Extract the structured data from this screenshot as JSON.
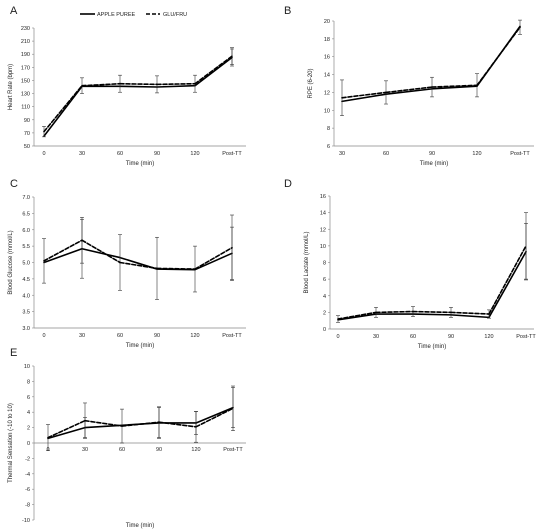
{
  "legend": {
    "apple_label": "APPLE PUREE",
    "glu_label": "GLU/FRU"
  },
  "chart_data": [
    {
      "type": "line",
      "panel": "A",
      "categories": [
        "0",
        "30",
        "60",
        "90",
        "120",
        "Post-TT"
      ],
      "xlabel": "Time (min)",
      "ylabel": "Heart Rate (bpm)",
      "ylim": [
        50,
        230
      ],
      "yticks": [
        50,
        70,
        90,
        110,
        130,
        150,
        170,
        190,
        210,
        230
      ],
      "series": [
        {
          "name": "APPLE PUREE",
          "values": [
            65,
            141,
            141,
            140,
            142,
            185
          ],
          "errors": [
            0,
            0,
            0,
            0,
            0,
            13
          ]
        },
        {
          "name": "GLU/FRU",
          "values": [
            72,
            142,
            145,
            144,
            145,
            187
          ],
          "errors": [
            8,
            12,
            13,
            13,
            13,
            13
          ]
        }
      ]
    },
    {
      "type": "line",
      "panel": "B",
      "categories": [
        "30",
        "60",
        "90",
        "120",
        "Post-TT"
      ],
      "xlabel": "Time (min)",
      "ylabel": "RPE (6-20)",
      "ylim": [
        6,
        20
      ],
      "yticks": [
        6,
        8,
        10,
        12,
        14,
        16,
        18,
        20
      ],
      "series": [
        {
          "name": "APPLE PUREE",
          "values": [
            11.0,
            11.8,
            12.4,
            12.7,
            19.4
          ],
          "errors": [
            0,
            0,
            0,
            0,
            0
          ]
        },
        {
          "name": "GLU/FRU",
          "values": [
            11.4,
            12.0,
            12.6,
            12.8,
            19.3
          ],
          "errors": [
            2.0,
            1.3,
            1.1,
            1.3,
            0.8
          ]
        }
      ]
    },
    {
      "type": "line",
      "panel": "C",
      "categories": [
        "0",
        "30",
        "60",
        "90",
        "120",
        "Post-TT"
      ],
      "xlabel": "Time (min)",
      "ylabel": "Blood Glucose (mmol/L)",
      "ylim": [
        3.0,
        7.0
      ],
      "yticks": [
        "3.0",
        "3.5",
        "4.0",
        "4.5",
        "5.0",
        "5.5",
        "6.0",
        "6.5",
        "7.0"
      ],
      "series": [
        {
          "name": "APPLE PUREE",
          "values": [
            5.0,
            5.42,
            5.15,
            4.8,
            4.78,
            5.28
          ],
          "errors": [
            0,
            0.9,
            0,
            0,
            0,
            0.8
          ]
        },
        {
          "name": "GLU/FRU",
          "values": [
            5.05,
            5.68,
            5.0,
            4.82,
            4.8,
            5.45
          ],
          "errors": [
            0.68,
            0.7,
            0.85,
            0.95,
            0.7,
            1.0
          ]
        }
      ]
    },
    {
      "type": "line",
      "panel": "D",
      "categories": [
        "0",
        "30",
        "60",
        "90",
        "120",
        "Post-TT"
      ],
      "xlabel": "Time (min)",
      "ylabel": "Blood Lactate (mmol/L)",
      "ylim": [
        0,
        16
      ],
      "yticks": [
        0,
        2,
        4,
        6,
        8,
        10,
        12,
        14,
        16
      ],
      "series": [
        {
          "name": "APPLE PUREE",
          "values": [
            1.1,
            1.8,
            1.8,
            1.7,
            1.4,
            9.3
          ],
          "errors": [
            0,
            0,
            0,
            0,
            0,
            3.4
          ]
        },
        {
          "name": "GLU/FRU",
          "values": [
            1.2,
            2.0,
            2.1,
            2.0,
            1.8,
            10.0
          ],
          "errors": [
            0.4,
            0.6,
            0.6,
            0.6,
            0.5,
            4.0
          ]
        }
      ]
    },
    {
      "type": "line",
      "panel": "E",
      "categories": [
        "0",
        "30",
        "60",
        "90",
        "120",
        "Post-TT"
      ],
      "xlabel": "Time (min)",
      "ylabel": "Thermal Sensation (-10 to 10)",
      "ylim": [
        -10,
        10
      ],
      "yticks": [
        -10,
        -8,
        -6,
        -4,
        -2,
        0,
        2,
        4,
        6,
        8,
        10
      ],
      "series": [
        {
          "name": "APPLE PUREE",
          "values": [
            0.6,
            2.0,
            2.3,
            2.6,
            2.6,
            4.6
          ],
          "errors": [
            0,
            1.3,
            0,
            2.0,
            1.5,
            2.6
          ]
        },
        {
          "name": "GLU/FRU",
          "values": [
            0.7,
            2.9,
            2.2,
            2.7,
            2.1,
            4.5
          ],
          "errors": [
            1.7,
            2.3,
            2.2,
            2.0,
            2.0,
            2.9
          ]
        }
      ]
    }
  ]
}
